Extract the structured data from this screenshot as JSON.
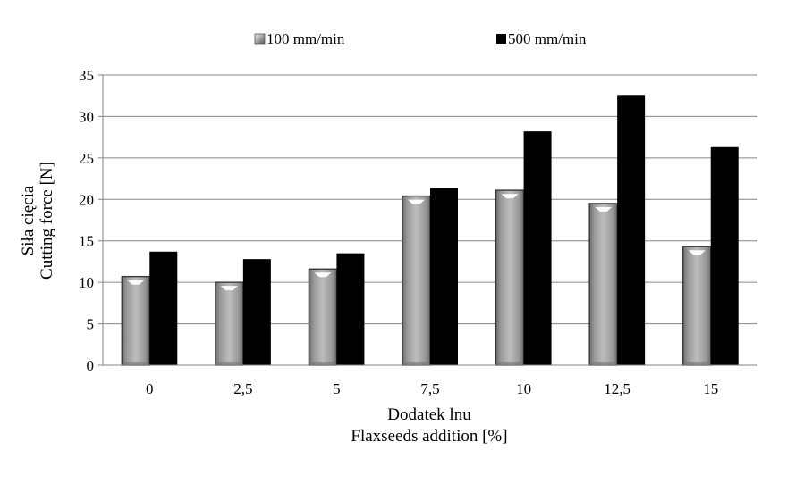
{
  "chart_data": {
    "type": "bar",
    "categories": [
      "0",
      "2,5",
      "5",
      "7,5",
      "10",
      "12,5",
      "15"
    ],
    "series": [
      {
        "name": "100 mm/min",
        "values": [
          10.7,
          10.0,
          11.6,
          20.4,
          21.1,
          19.5,
          14.3
        ],
        "color": "#a6a6a6"
      },
      {
        "name": "500 mm/min",
        "values": [
          13.7,
          12.8,
          13.5,
          21.4,
          28.2,
          32.6,
          26.3
        ],
        "color": "#000000"
      }
    ],
    "xlabel": [
      "Dodatek lnu",
      "Flaxseeds addition [%]"
    ],
    "ylabel": [
      "Siła cięcia",
      "Cutting force [N]"
    ],
    "ylim": [
      0,
      35
    ],
    "yticks": [
      "0",
      "5",
      "10",
      "15",
      "20",
      "25",
      "30",
      "35"
    ],
    "grid": true,
    "legend": "top-center"
  }
}
